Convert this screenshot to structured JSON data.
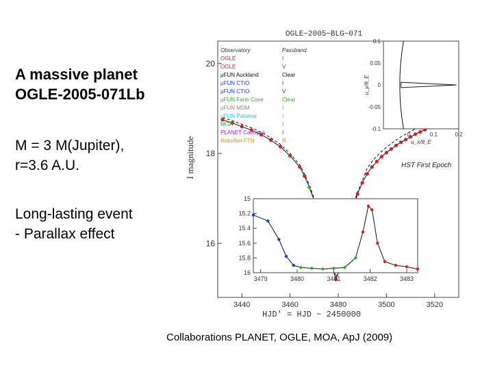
{
  "slide": {
    "title_line1": "A massive planet",
    "title_line2": "OGLE-2005-071Lb",
    "mass_line1": "M = 3 M(Jupiter),",
    "mass_line2": "r=3.6 A.U.",
    "event_line1": "Long-lasting event",
    "event_line2": "- Parallax effect",
    "credit": "Collaborations PLANET, OGLE, MOA, ApJ (2009)"
  },
  "figure": {
    "title": "OGLE−2005−BLG−071",
    "ylabel": "I magnitude",
    "xlabel": "HJD' = HJD − 2450000",
    "annotation": "HST First Epoch",
    "legend_header": [
      "Observatory",
      "Passband"
    ],
    "legend": [
      {
        "obs": "OGLE",
        "band": "I",
        "color": "#e0201f"
      },
      {
        "obs": "OGLE",
        "band": "V",
        "color": "#e0201f"
      },
      {
        "obs": "μFUN Auckland",
        "band": "Clear",
        "color": "#111111"
      },
      {
        "obs": "μFUN CTIO",
        "band": "I",
        "color": "#1a3fd6"
      },
      {
        "obs": "μFUN CTIO",
        "band": "V",
        "color": "#1a3fd6"
      },
      {
        "obs": "μFUN Farm Cove",
        "band": "Clear",
        "color": "#2fae2f"
      },
      {
        "obs": "μFUN MDM",
        "band": "I",
        "color": "#888888"
      },
      {
        "obs": "μFUN Palomar",
        "band": "I",
        "color": "#25c7e0"
      },
      {
        "obs": "MOA",
        "band": "I",
        "color": "#2fae2f"
      },
      {
        "obs": "PLANET Canopus",
        "band": "I",
        "color": "#9b1fd0"
      },
      {
        "obs": "RoboNet FTN",
        "band": "R",
        "color": "#e08a1f"
      }
    ]
  },
  "chart_data": [
    {
      "type": "scatter",
      "title": "OGLE−2005−BLG−071",
      "xlabel": "HJD' = HJD − 2450000",
      "ylabel": "I magnitude",
      "xlim": [
        3430,
        3530
      ],
      "ylim": [
        20.5,
        14.8
      ],
      "x_ticks": [
        "3440",
        "3460",
        "3480",
        "3500",
        "3520"
      ],
      "y_ticks": [
        "16",
        "18",
        "20"
      ],
      "series": [
        {
          "name": "OGLE I",
          "x": [
            3432,
            3436,
            3440,
            3444,
            3448,
            3452,
            3456,
            3460,
            3464,
            3466,
            3468,
            3470,
            3472,
            3474,
            3476,
            3478,
            3479,
            3480.5,
            3481.5,
            3482.5,
            3484,
            3486,
            3488,
            3490,
            3492,
            3494,
            3496,
            3498,
            3500,
            3502,
            3504,
            3506,
            3508,
            3510,
            3512,
            3514,
            3516,
            3518,
            3520,
            3522,
            3524,
            3526
          ],
          "y": [
            18.75,
            18.68,
            18.6,
            18.52,
            18.42,
            18.3,
            18.15,
            17.95,
            17.7,
            17.5,
            17.25,
            16.95,
            16.6,
            16.2,
            15.8,
            15.4,
            15.2,
            15.4,
            15.6,
            15.85,
            16.3,
            16.75,
            17.1,
            17.35,
            17.55,
            17.7,
            17.82,
            17.93,
            18.02,
            18.1,
            18.18,
            18.25,
            18.31,
            18.37,
            18.43,
            18.48,
            18.53,
            18.58,
            18.62,
            18.66,
            18.7,
            18.73
          ]
        }
      ]
    },
    {
      "type": "line",
      "title": "",
      "xlabel": "",
      "ylabel": "",
      "xlim": [
        3478.8,
        3483.3
      ],
      "ylim": [
        16,
        15
      ],
      "x_ticks": [
        "3479",
        "3480",
        "3481",
        "3482",
        "3483"
      ],
      "y_ticks": [
        "15",
        "15.2",
        "15.4",
        "15.6",
        "15.8",
        "16"
      ],
      "series": [
        {
          "name": "",
          "x": [
            3478.8,
            3479.2,
            3479.5,
            3479.7,
            3479.9,
            3480.1,
            3480.4,
            3480.7,
            3481.0,
            3481.3,
            3481.6,
            3481.8,
            3481.95,
            3482.05,
            3482.2,
            3482.4,
            3482.7,
            3483.0,
            3483.3
          ],
          "y": [
            15.22,
            15.3,
            15.55,
            15.78,
            15.9,
            15.93,
            15.94,
            15.95,
            15.94,
            15.93,
            15.8,
            15.45,
            15.1,
            15.15,
            15.6,
            15.85,
            15.9,
            15.92,
            15.95
          ]
        }
      ]
    },
    {
      "type": "line",
      "title": "",
      "xlabel": "u_x/θ_E",
      "ylabel": "u_y/θ_E",
      "xlim": [
        -0.1,
        0.2
      ],
      "ylim": [
        -0.1,
        0.1
      ],
      "x_ticks": [
        "0",
        "0.1",
        "0.2"
      ],
      "y_ticks": [
        "0.1",
        "0.05",
        "0",
        "-0.05",
        "-0.1"
      ],
      "series": []
    }
  ]
}
